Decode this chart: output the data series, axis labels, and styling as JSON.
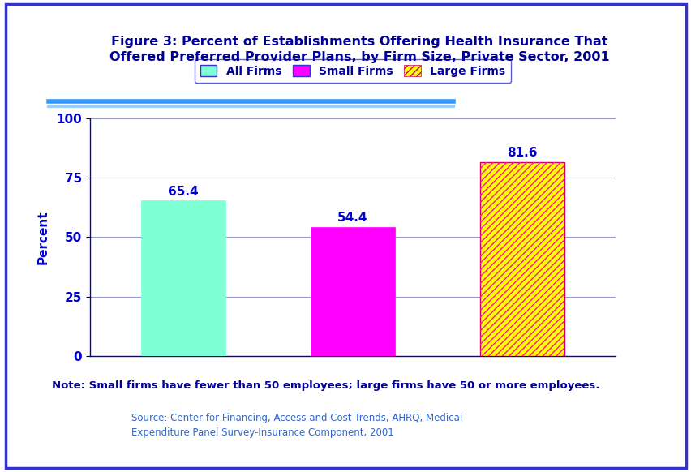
{
  "title": "Figure 3: Percent of Establishments Offering Health Insurance That\nOffered Preferred Provider Plans, by Firm Size, Private Sector, 2001",
  "categories": [
    "All Firms",
    "Small Firms",
    "Large Firms"
  ],
  "values": [
    65.4,
    54.4,
    81.6
  ],
  "bar_colors": [
    "#7FFFD4",
    "#FF00FF",
    "#FFFF00"
  ],
  "hatches": [
    "",
    "",
    "////"
  ],
  "hatch_edge_colors": [
    "#7FFFD4",
    "#FF00FF",
    "#FF69B4"
  ],
  "ylabel": "Percent",
  "ylim": [
    0,
    100
  ],
  "yticks": [
    0,
    25,
    50,
    75,
    100
  ],
  "note": "Note: Small firms have fewer than 50 employees; large firms have 50 or more employees.",
  "source_line1": "Source: Center for Financing, Access and Cost Trends, AHRQ, Medical",
  "source_line2": "Expenditure Panel Survey-Insurance Component, 2001",
  "bg_color": "#FFFFFF",
  "outer_border_color": "#3333CC",
  "title_color": "#000099",
  "axis_label_color": "#0000CC",
  "tick_label_color": "#0000CC",
  "note_color": "#000099",
  "source_color": "#3366CC",
  "bar_label_color": "#0000CC",
  "legend_label_color": "#000099",
  "value_labels": [
    "65.4",
    "54.4",
    "81.6"
  ],
  "grid_color": "#9999CC",
  "separator_color_dark": "#3399FF",
  "separator_color_light": "#99CCFF",
  "legend_edge_color": "#3333CC"
}
